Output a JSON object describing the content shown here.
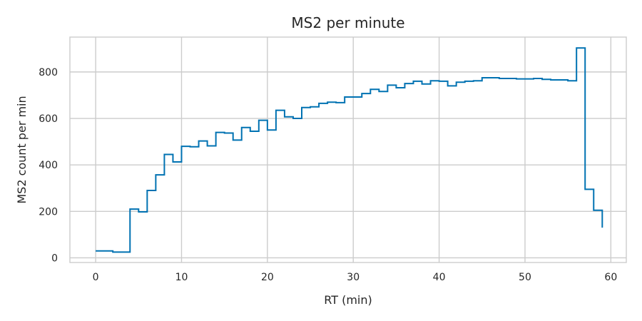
{
  "chart_data": {
    "type": "line",
    "step": "post",
    "title": "MS2 per minute",
    "xlabel": "RT (min)",
    "ylabel": "MS2 count per min",
    "xlim": [
      -3,
      61.8
    ],
    "ylim": [
      -20,
      950
    ],
    "xticks": [
      0,
      10,
      20,
      30,
      40,
      50,
      60
    ],
    "yticks": [
      0,
      200,
      400,
      600,
      800
    ],
    "grid": true,
    "line_color": "#0072B2",
    "series": [
      {
        "x": [
          0,
          1,
          2,
          3,
          4,
          5,
          6,
          7,
          8,
          9,
          10,
          11,
          12,
          13,
          14,
          15,
          16,
          17,
          18,
          19,
          20,
          21,
          22,
          23,
          24,
          25,
          26,
          27,
          28,
          29,
          30,
          31,
          32,
          33,
          34,
          35,
          36,
          37,
          38,
          39,
          40,
          41,
          42,
          43,
          44,
          45,
          46,
          47,
          48,
          49,
          50,
          51,
          52,
          53,
          54,
          55,
          56,
          57,
          58,
          59
        ],
        "values": [
          30,
          30,
          25,
          25,
          210,
          198,
          290,
          357,
          445,
          413,
          480,
          478,
          503,
          482,
          540,
          537,
          507,
          561,
          545,
          592,
          550,
          635,
          607,
          600,
          647,
          650,
          665,
          670,
          668,
          692,
          692,
          707,
          725,
          716,
          743,
          732,
          750,
          760,
          748,
          762,
          760,
          740,
          756,
          760,
          762,
          775,
          775,
          772,
          772,
          770,
          770,
          772,
          768,
          766,
          766,
          762,
          903,
          295,
          205,
          130
        ]
      }
    ]
  }
}
